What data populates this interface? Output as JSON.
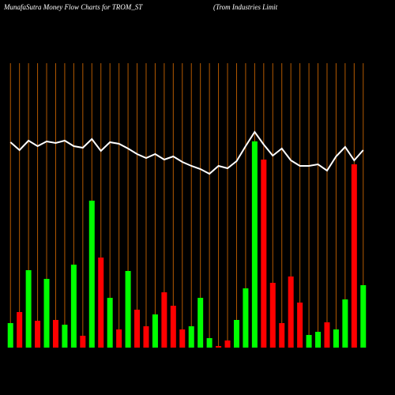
{
  "chart_data": {
    "type": "bar",
    "title": "MunafaSutra  Money Flow  Charts for TROM_ST",
    "subtitle": "(Trom Industries Limit",
    "values": [
      31,
      45,
      98,
      34,
      87,
      35,
      29,
      105,
      15,
      186,
      114,
      63,
      23,
      97,
      48,
      27,
      42,
      70,
      53,
      23,
      27,
      63,
      12,
      2,
      9,
      35,
      75,
      261,
      238,
      82,
      31,
      90,
      57,
      16,
      20,
      32,
      23,
      61,
      232,
      79
    ],
    "colors": [
      "#00ff00",
      "#ff0000",
      "#00ff00",
      "#ff0000",
      "#00ff00",
      "#ff0000",
      "#00ff00",
      "#00ff00",
      "#ff0000",
      "#00ff00",
      "#ff0000",
      "#00ff00",
      "#ff0000",
      "#00ff00",
      "#ff0000",
      "#ff0000",
      "#00ff00",
      "#ff0000",
      "#ff0000",
      "#ff0000",
      "#00ff00",
      "#00ff00",
      "#00ff00",
      "#ff0000",
      "#ff0000",
      "#00ff00",
      "#00ff00",
      "#00ff00",
      "#ff0000",
      "#ff0000",
      "#ff0000",
      "#ff0000",
      "#ff0000",
      "#00ff00",
      "#00ff00",
      "#ff0000",
      "#00ff00",
      "#00ff00",
      "#ff0000",
      "#00ff00"
    ],
    "line_values": [
      260,
      250,
      262,
      255,
      261,
      259,
      262,
      255,
      253,
      264,
      249,
      260,
      258,
      252,
      245,
      240,
      245,
      238,
      242,
      235,
      230,
      226,
      220,
      230,
      227,
      236,
      255,
      273,
      257,
      243,
      252,
      237,
      230,
      230,
      232,
      224,
      242,
      254,
      237,
      250
    ],
    "line_color": "#ffffff",
    "ylim": [
      0,
      360
    ],
    "grid": true,
    "grid_color": "#b35900"
  }
}
